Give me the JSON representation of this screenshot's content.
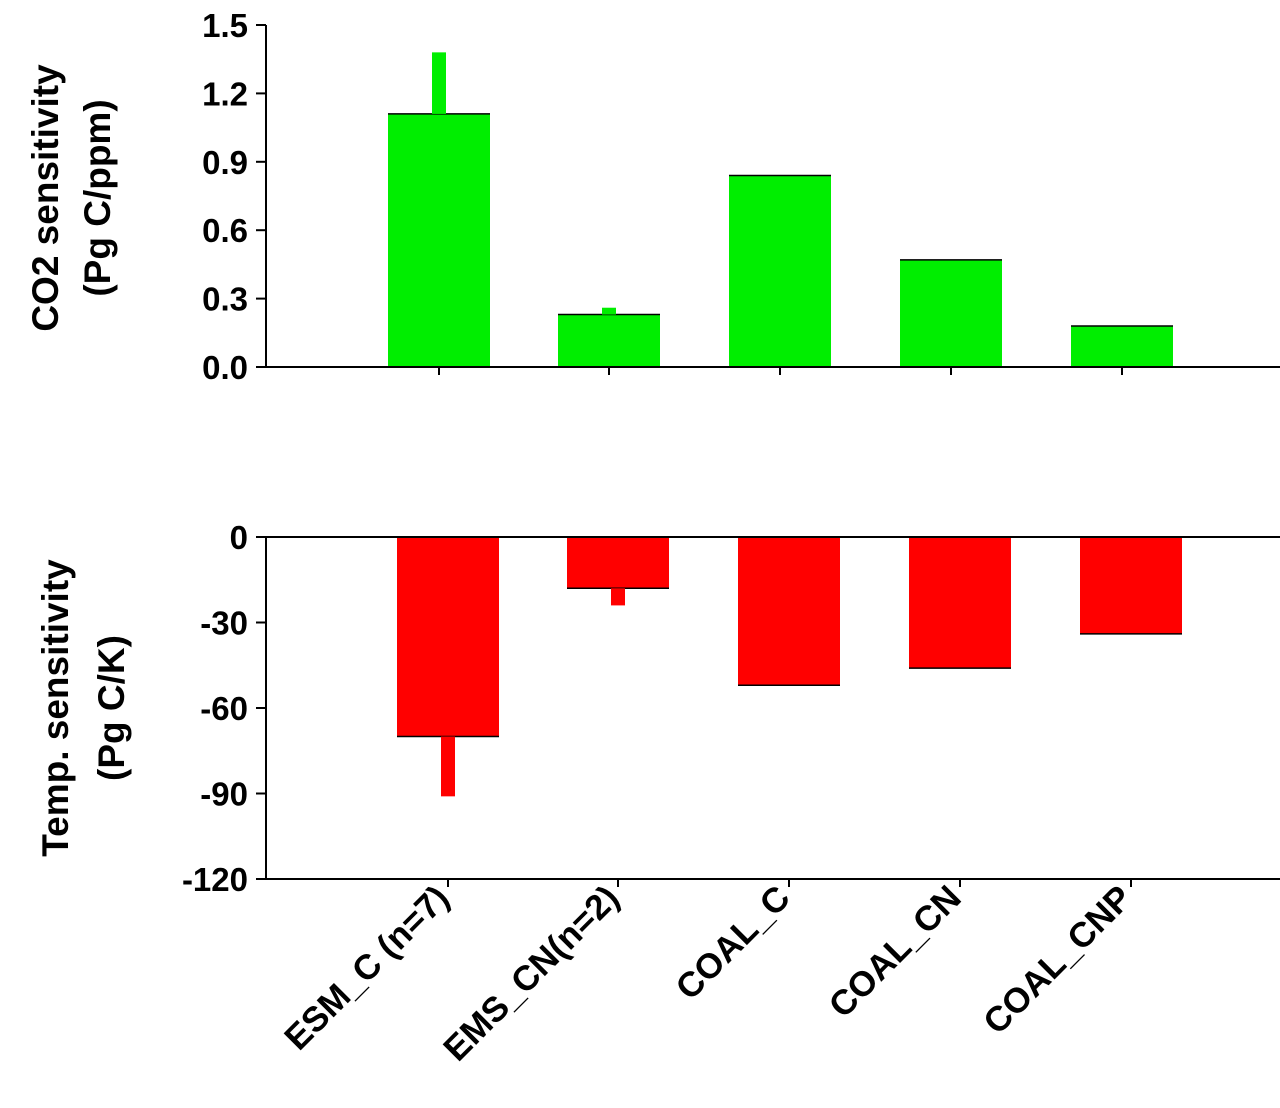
{
  "chart_data": [
    {
      "type": "bar",
      "title": "",
      "xlabel": "",
      "ylabel_lines": [
        "CO2 sensitivity",
        "(Pg C/ppm)"
      ],
      "categories": [
        "ESM_C (n=7)",
        "EMS_CN(n=2)",
        "COAL_C",
        "COAL_CN",
        "COAL_CNP"
      ],
      "values": [
        1.11,
        0.23,
        0.84,
        0.47,
        0.18
      ],
      "error_upper": [
        1.38,
        0.26,
        null,
        null,
        null
      ],
      "ylim": [
        0.0,
        1.5
      ],
      "yticks": [
        "0.0",
        "0.3",
        "0.6",
        "0.9",
        "1.2",
        "1.5"
      ],
      "bar_color": "#00ee00"
    },
    {
      "type": "bar",
      "title": "",
      "xlabel": "",
      "ylabel_lines": [
        "Temp. sensitivity",
        "(Pg C/K)"
      ],
      "categories": [
        "ESM_C (n=7)",
        "EMS_CN(n=2)",
        "COAL_C",
        "COAL_CN",
        "COAL_CNP"
      ],
      "values": [
        -70,
        -18,
        -52,
        -46,
        -34
      ],
      "error_lower": [
        -91,
        -24,
        null,
        null,
        null
      ],
      "ylim": [
        -120,
        0
      ],
      "yticks": [
        "-120",
        "-90",
        "-60",
        "-30",
        "0"
      ],
      "bar_color": "#ff0000"
    }
  ]
}
